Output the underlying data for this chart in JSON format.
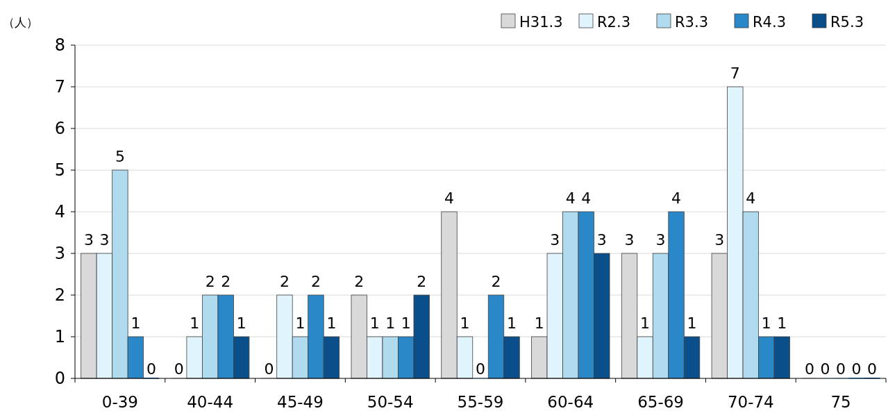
{
  "chart_data": {
    "type": "bar",
    "ylabel": "（人）",
    "categories": [
      "0-39",
      "40-44",
      "45-49",
      "50-54",
      "55-59",
      "60-64",
      "65-69",
      "70-74",
      "75"
    ],
    "series": [
      {
        "name": "H31.3",
        "color": "#d9d9d9",
        "values": [
          3,
          0,
          0,
          2,
          4,
          1,
          3,
          3,
          0
        ]
      },
      {
        "name": "R2.3",
        "color": "#dff4fc",
        "values": [
          3,
          1,
          2,
          1,
          1,
          3,
          1,
          7,
          0
        ]
      },
      {
        "name": "R3.3",
        "color": "#b0daee",
        "values": [
          5,
          2,
          1,
          1,
          0,
          4,
          3,
          4,
          0
        ]
      },
      {
        "name": "R4.3",
        "color": "#2a88c8",
        "values": [
          1,
          2,
          2,
          1,
          2,
          4,
          4,
          1,
          0
        ]
      },
      {
        "name": "R5.3",
        "color": "#0a4e8a",
        "values": [
          0,
          1,
          1,
          2,
          1,
          3,
          1,
          1,
          0
        ]
      }
    ],
    "ylim": [
      0,
      8
    ],
    "yticks": [
      0,
      1,
      2,
      3,
      4,
      5,
      6,
      7,
      8
    ],
    "grid": "y",
    "legend": "top right",
    "data_labels": true
  }
}
